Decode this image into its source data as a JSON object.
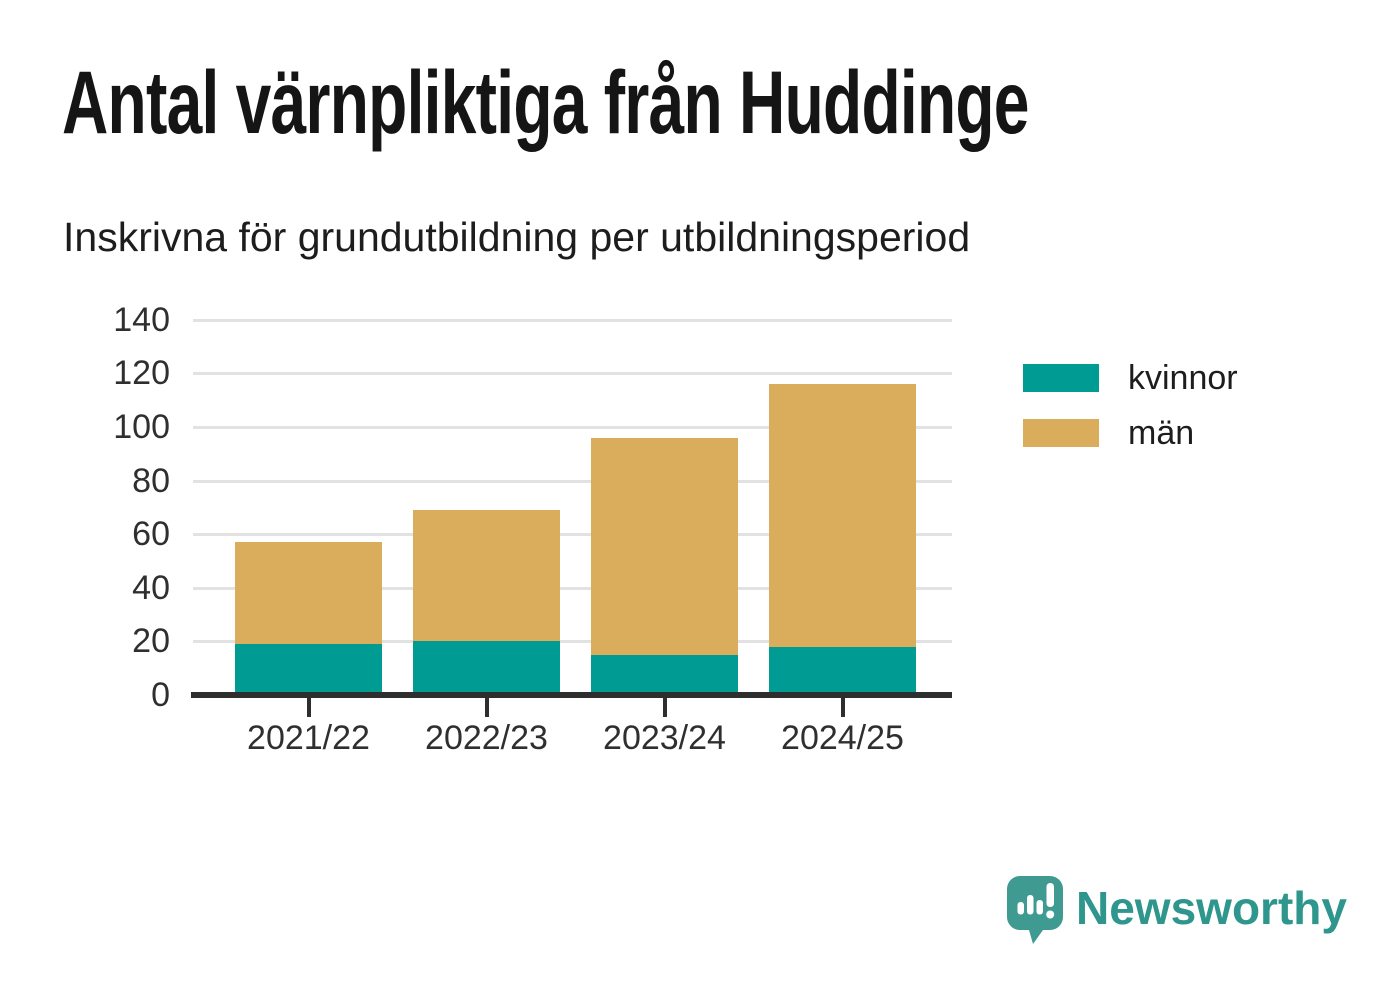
{
  "header": {
    "title": "Antal värnpliktiga från Huddinge",
    "subtitle": "Inskrivna för grundutbildning per utbildningsperiod"
  },
  "chart_data": {
    "type": "bar",
    "stacked": true,
    "title": "Antal värnpliktiga från Huddinge",
    "subtitle": "Inskrivna för grundutbildning per utbildningsperiod",
    "categories": [
      "2021/22",
      "2022/23",
      "2023/24",
      "2024/25"
    ],
    "series": [
      {
        "name": "kvinnor",
        "color": "#009c94",
        "values": [
          19,
          20,
          15,
          18
        ]
      },
      {
        "name": "män",
        "color": "#d9ad5b",
        "values": [
          38,
          49,
          81,
          98
        ]
      }
    ],
    "totals": [
      57,
      69,
      96,
      116
    ],
    "xlabel": "",
    "ylabel": "",
    "ylim": [
      0,
      140
    ],
    "yticks": [
      0,
      20,
      40,
      60,
      80,
      100,
      120,
      140
    ],
    "grid": true,
    "legend_position": "right",
    "colors": {
      "grid": "#e2e2e2",
      "axis": "#2e2e2e",
      "tick_text": "#2f2f2f"
    }
  },
  "branding": {
    "wordmark": "Newsworthy",
    "logo_icon": "speech-bubble-bar-chart-icon",
    "logo_color": "#3f9b92",
    "wordmark_color": "#2e968c"
  }
}
